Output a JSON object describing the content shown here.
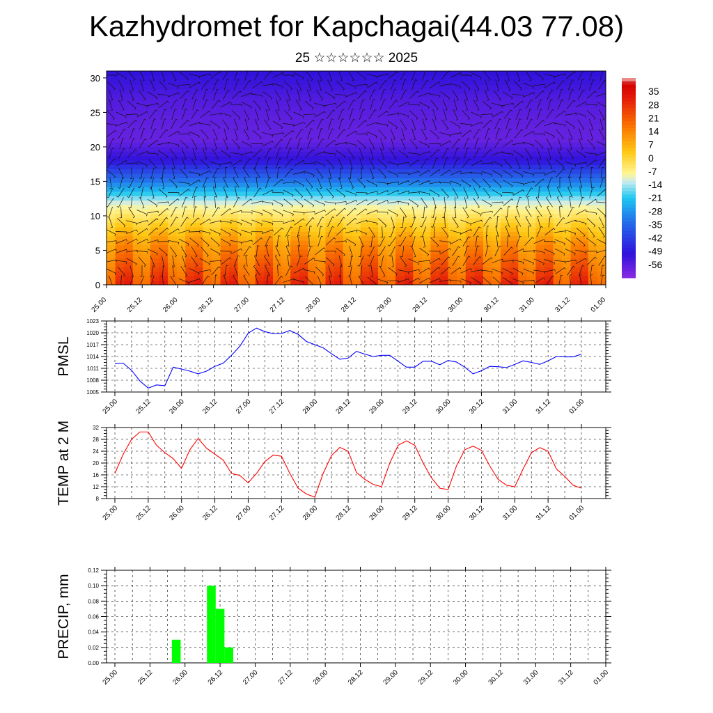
{
  "title": "Kazhydromet for Kapchagai(44.03 77.08)",
  "subtitle": "25 ☆☆☆☆☆☆ 2025",
  "chart_data": [
    {
      "type": "heatmap",
      "description": "height-time cross section with wind barbs",
      "x_tick_labels": [
        "25.00",
        "25.12",
        "26.00",
        "26.12",
        "27.00",
        "27.12",
        "28.00",
        "28.12",
        "29.00",
        "29.12",
        "30.00",
        "30.12",
        "31.00",
        "31.12",
        "01.00"
      ],
      "y_ticks": [
        0,
        5,
        10,
        15,
        20,
        25,
        30
      ],
      "ylim": [
        0,
        31
      ],
      "colorbar_labels": [
        "35",
        "28",
        "21",
        "14",
        "7",
        "0",
        "-7",
        "-14",
        "-21",
        "-28",
        "-35",
        "-42",
        "-49",
        "-56"
      ],
      "colorbar_range": [
        -63,
        42
      ],
      "profile_heights": [
        0,
        3,
        6,
        9,
        12,
        15,
        18,
        21,
        24,
        27,
        31
      ],
      "profile_values": [
        25,
        18,
        11,
        0,
        -12,
        -32,
        -50,
        -58,
        -57,
        -55,
        -50
      ],
      "surface_diurnal_amplitude": 9
    },
    {
      "type": "line",
      "ylabel": "PMSL",
      "yticks": [
        1005,
        1008,
        1011,
        1014,
        1017,
        1020,
        1023
      ],
      "ylim": [
        1005,
        1023
      ],
      "x_tick_labels": [
        "25.00",
        "25.12",
        "26.00",
        "26.12",
        "27.00",
        "27.12",
        "28.00",
        "28.12",
        "29.00",
        "29.12",
        "30.00",
        "30.12",
        "31.00",
        "31.12",
        "01.00"
      ],
      "series_color": "#0000ff",
      "values": [
        1012.2,
        1012.3,
        1010.5,
        1007.8,
        1006.0,
        1006.8,
        1006.6,
        1011.3,
        1010.8,
        1010.3,
        1009.6,
        1010.3,
        1011.5,
        1012.3,
        1014.3,
        1016.6,
        1019.9,
        1021.2,
        1020.3,
        1019.8,
        1019.8,
        1020.6,
        1019.6,
        1017.8,
        1017.0,
        1016.2,
        1014.7,
        1013.3,
        1013.6,
        1015.3,
        1014.6,
        1014.0,
        1014.3,
        1014.3,
        1012.8,
        1011.3,
        1011.3,
        1012.8,
        1012.8,
        1011.9,
        1013.0,
        1012.6,
        1011.3,
        1009.6,
        1010.4,
        1011.5,
        1011.4,
        1011.2,
        1012.0,
        1012.9,
        1012.5,
        1012.0,
        1012.9,
        1014.0,
        1013.9,
        1013.9,
        1014.6
      ]
    },
    {
      "type": "line",
      "ylabel": "TEMP at 2 M",
      "yticks": [
        8,
        12,
        16,
        20,
        24,
        28,
        32
      ],
      "ylim": [
        8,
        32
      ],
      "x_tick_labels": [
        "25.00",
        "25.12",
        "26.00",
        "26.12",
        "27.00",
        "27.12",
        "28.00",
        "28.12",
        "29.00",
        "29.12",
        "30.00",
        "30.12",
        "31.00",
        "31.12",
        "01.00"
      ],
      "series_color": "#ff0000",
      "values": [
        16.5,
        23.0,
        28.0,
        30.5,
        30.5,
        26.0,
        23.5,
        21.5,
        18.2,
        24.5,
        28.3,
        25.0,
        23.0,
        21.0,
        16.5,
        15.8,
        13.3,
        16.5,
        20.5,
        22.7,
        22.3,
        16.5,
        11.5,
        9.5,
        8.5,
        16.5,
        22.5,
        25.3,
        24.0,
        16.8,
        14.5,
        12.8,
        12.0,
        20.0,
        26.0,
        27.5,
        26.0,
        20.0,
        15.0,
        11.5,
        11.0,
        19.0,
        24.5,
        25.7,
        24.3,
        19.0,
        14.5,
        12.5,
        12.0,
        18.0,
        23.5,
        25.2,
        24.0,
        18.0,
        15.5,
        12.5,
        11.5
      ]
    },
    {
      "type": "bar",
      "ylabel": "PRECIP, mm",
      "yticks": [
        "0.00",
        "0.02",
        "0.04",
        "0.06",
        "0.08",
        "0.10",
        "0.12"
      ],
      "ylim": [
        0,
        0.12
      ],
      "x_tick_labels": [
        "25.00",
        "25.12",
        "26.00",
        "26.12",
        "27.00",
        "27.12",
        "28.00",
        "28.12",
        "29.00",
        "29.12",
        "30.00",
        "30.12",
        "31.00",
        "31.12",
        "01.00"
      ],
      "bar_color": "#00ff00",
      "values": [
        0,
        0,
        0,
        0,
        0,
        0,
        0,
        0.03,
        0,
        0,
        0,
        0.1,
        0.07,
        0.02,
        0,
        0,
        0,
        0,
        0,
        0,
        0,
        0,
        0,
        0,
        0,
        0,
        0,
        0,
        0,
        0,
        0,
        0,
        0,
        0,
        0,
        0,
        0,
        0,
        0,
        0,
        0,
        0,
        0,
        0,
        0,
        0,
        0,
        0,
        0,
        0,
        0,
        0,
        0,
        0,
        0,
        0,
        0
      ]
    }
  ]
}
